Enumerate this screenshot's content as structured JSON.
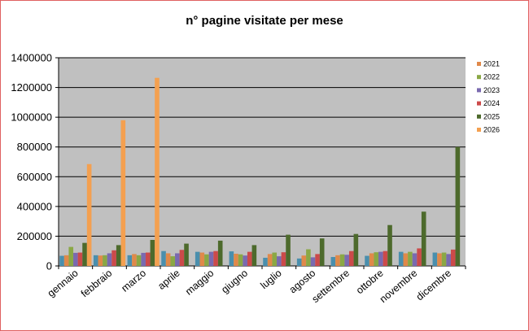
{
  "chart_data": {
    "type": "bar",
    "title": "n° pagine visitate per mese",
    "xlabel": "",
    "ylabel": "",
    "ylim": [
      0,
      1400000
    ],
    "yticks": [
      "0",
      "200000",
      "400000",
      "600000",
      "800000",
      "1000000",
      "1200000",
      "1400000"
    ],
    "categories": [
      "gennaio",
      "febbraio",
      "marzo",
      "aprile",
      "maggio",
      "giugno",
      "luglio",
      "agosto",
      "settembre",
      "ottobre",
      "novembre",
      "dicembre"
    ],
    "grid": true,
    "legend_position": "right",
    "plot_background": "#c0c0c0",
    "series": [
      {
        "name": "",
        "color": "#4a8fad",
        "values": [
          68000,
          72000,
          72000,
          100000,
          95000,
          98000,
          55000,
          50000,
          60000,
          68000,
          95000,
          90000
        ]
      },
      {
        "name": "",
        "color": "#e0894a",
        "values": [
          72000,
          70000,
          80000,
          85000,
          90000,
          82000,
          80000,
          70000,
          72000,
          85000,
          85000,
          85000
        ]
      },
      {
        "name": "2022",
        "color": "#8aa845",
        "values": [
          128000,
          72000,
          72000,
          65000,
          78000,
          78000,
          90000,
          112000,
          78000,
          92000,
          95000,
          90000
        ]
      },
      {
        "name": "2023",
        "color": "#7a6ab0",
        "values": [
          88000,
          85000,
          88000,
          85000,
          95000,
          70000,
          65000,
          58000,
          75000,
          95000,
          85000,
          80000
        ]
      },
      {
        "name": "2024",
        "color": "#cc4a4a",
        "values": [
          90000,
          105000,
          90000,
          108000,
          100000,
          95000,
          92000,
          80000,
          100000,
          100000,
          118000,
          110000
        ]
      },
      {
        "name": "2025",
        "color": "#4d6a2c",
        "values": [
          155000,
          140000,
          175000,
          150000,
          170000,
          140000,
          210000,
          185000,
          215000,
          275000,
          365000,
          800000
        ]
      },
      {
        "name": "2026",
        "color": "#f4a050",
        "values": [
          685000,
          980000,
          1265000,
          0,
          0,
          0,
          0,
          0,
          0,
          0,
          0,
          0
        ]
      }
    ],
    "legend": [
      {
        "name": "2021",
        "color": "#e0894a"
      },
      {
        "name": "2022",
        "color": "#8aa845"
      },
      {
        "name": "2023",
        "color": "#7a6ab0"
      },
      {
        "name": "2024",
        "color": "#cc4a4a"
      },
      {
        "name": "2025",
        "color": "#4d6a2c"
      },
      {
        "name": "2026",
        "color": "#f4a050"
      }
    ]
  }
}
